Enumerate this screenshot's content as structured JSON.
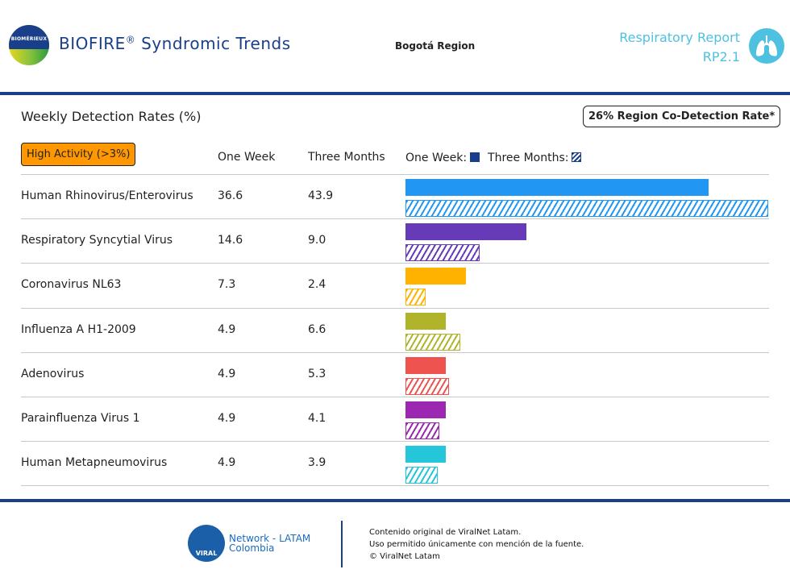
{
  "header": {
    "logo_text": "BIOMÉRIEUX",
    "title": "BIOFIRE",
    "title_mark": "®",
    "title_rest": " Syndromic Trends",
    "region": "Bogotá Region",
    "report_line1": "Respiratory Report",
    "report_line2": "RP2.1",
    "report_icon": "lungs-icon"
  },
  "section": {
    "title": "Weekly Detection Rates (%)",
    "codetection": "26% Region Co-Detection Rate*",
    "badge": "High Activity (>3%)",
    "col_week": "One Week",
    "col_months": "Three Months",
    "legend_week": "One Week:",
    "legend_months": "Three Months:"
  },
  "chart_data": {
    "type": "bar",
    "orientation": "horizontal",
    "categories": [
      "Human Rhinovirus/Enterovirus",
      "Respiratory Syncytial Virus",
      "Coronavirus NL63",
      "Influenza A H1-2009",
      "Adenovirus",
      "Parainfluenza Virus 1",
      "Human Metapneumovirus"
    ],
    "series": [
      {
        "name": "One Week",
        "style": "solid",
        "values": [
          36.6,
          14.6,
          7.3,
          4.9,
          4.9,
          4.9,
          4.9
        ]
      },
      {
        "name": "Three Months",
        "style": "hatched",
        "values": [
          43.9,
          9.0,
          2.4,
          6.6,
          5.3,
          4.1,
          3.9
        ]
      }
    ],
    "value_labels": {
      "week": [
        "36.6",
        "14.6",
        "7.3",
        "4.9",
        "4.9",
        "4.9",
        "4.9"
      ],
      "months": [
        "43.9",
        "9.0",
        "2.4",
        "6.6",
        "5.3",
        "4.1",
        "3.9"
      ]
    },
    "colors": [
      "#2196f3",
      "#673ab7",
      "#ffb300",
      "#afb42b",
      "#ef5350",
      "#9c27b0",
      "#26c6da"
    ],
    "grid": false
  },
  "footer": {
    "logo_text": "VIRAL",
    "network_line1": "Network - LATAM",
    "network_line2": "Colombia",
    "line1": "Contenido original de ViralNet Latam.",
    "line2": "Uso permitido únicamente con mención de la fuente.",
    "line3": "© ViralNet Latam"
  }
}
